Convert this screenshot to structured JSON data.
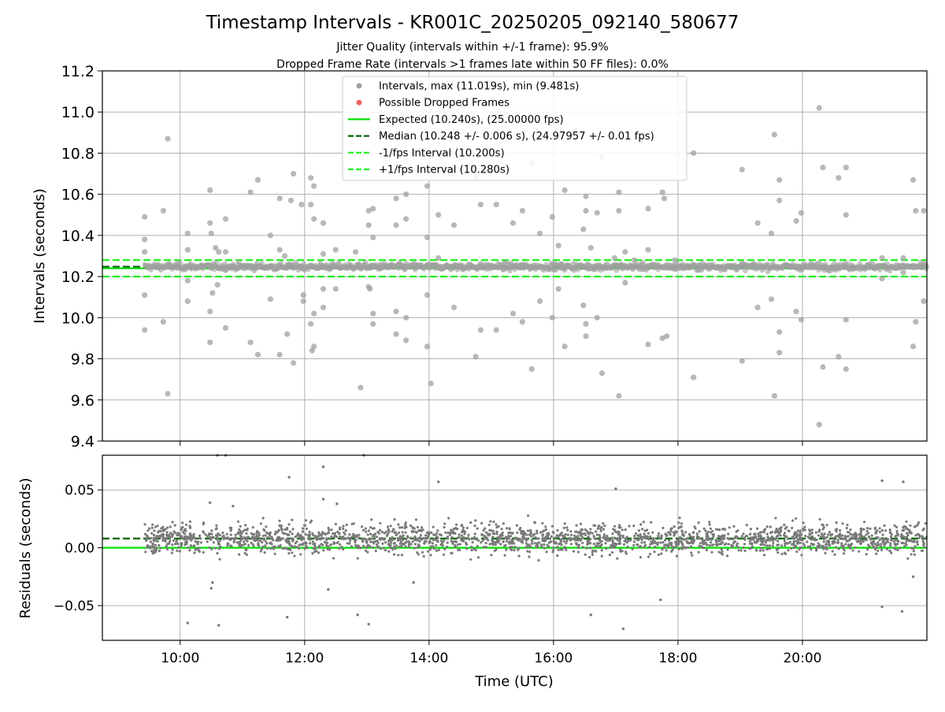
{
  "chart_data": {
    "title": "Timestamp Intervals - KR001C_20250205_092140_580677",
    "subtitle_lines": [
      "Jitter Quality (intervals within +/-1 frame): 95.9%",
      "Dropped Frame Rate (intervals >1 frames late within 50 FF files): 0.0%"
    ],
    "panels": [
      {
        "id": "intervals",
        "type": "scatter",
        "ylabel": "Intervals (seconds)",
        "ylim": [
          9.4,
          11.2
        ],
        "yticks": [
          9.4,
          9.6,
          9.8,
          10.0,
          10.2,
          10.4,
          10.6,
          10.8,
          11.0,
          11.2
        ],
        "ytick_labels": [
          "9.4",
          "9.6",
          "9.8",
          "10.0",
          "10.2",
          "10.4",
          "10.6",
          "10.8",
          "11.0",
          "11.2"
        ],
        "grid": true,
        "legend_position": "top-center",
        "legend": [
          {
            "label": "Intervals, max (11.019s), min (9.481s)",
            "kind": "dot",
            "color": "#a0a0a0"
          },
          {
            "label": "Possible Dropped Frames",
            "kind": "dot",
            "color": "#f06060"
          },
          {
            "label": "Expected (10.240s), (25.00000 fps)",
            "kind": "solid",
            "color": "#00e000"
          },
          {
            "label": "Median (10.248 +/- 0.006 s), (24.97957 +/- 0.01 fps)",
            "kind": "dashed",
            "color": "#006400"
          },
          {
            "label": "-1/fps Interval (10.200s)",
            "kind": "dashed",
            "color": "#22ee22"
          },
          {
            "label": "+1/fps Interval (10.280s)",
            "kind": "dashed",
            "color": "#22ee22"
          }
        ],
        "reference_lines": [
          {
            "value": 10.24,
            "style": "solid",
            "color": "#00e000"
          },
          {
            "value": 10.248,
            "style": "dashed",
            "color": "#006400"
          },
          {
            "value": 10.2,
            "style": "dashed",
            "color": "#22ee22"
          },
          {
            "value": 10.28,
            "style": "dashed",
            "color": "#22ee22"
          }
        ],
        "outliers": [
          [
            9.43,
            10.49
          ],
          [
            9.43,
            10.38
          ],
          [
            9.43,
            10.32
          ],
          [
            9.43,
            10.11
          ],
          [
            9.43,
            9.94
          ],
          [
            9.73,
            10.52
          ],
          [
            9.73,
            9.98
          ],
          [
            9.8,
            10.87
          ],
          [
            9.8,
            9.63
          ],
          [
            10.12,
            10.41
          ],
          [
            10.12,
            10.33
          ],
          [
            10.12,
            10.18
          ],
          [
            10.12,
            10.08
          ],
          [
            10.48,
            10.62
          ],
          [
            10.48,
            10.46
          ],
          [
            10.5,
            10.41
          ],
          [
            10.48,
            10.03
          ],
          [
            10.48,
            9.88
          ],
          [
            10.52,
            10.12
          ],
          [
            10.57,
            10.34
          ],
          [
            10.6,
            10.16
          ],
          [
            10.62,
            10.32
          ],
          [
            10.73,
            10.48
          ],
          [
            10.73,
            10.32
          ],
          [
            10.73,
            9.95
          ],
          [
            11.13,
            10.61
          ],
          [
            11.13,
            9.88
          ],
          [
            11.25,
            10.67
          ],
          [
            11.25,
            9.82
          ],
          [
            11.45,
            10.4
          ],
          [
            11.45,
            10.09
          ],
          [
            11.6,
            10.58
          ],
          [
            11.6,
            10.33
          ],
          [
            11.6,
            9.82
          ],
          [
            11.68,
            10.3
          ],
          [
            11.72,
            9.92
          ],
          [
            11.78,
            10.57
          ],
          [
            11.82,
            10.7
          ],
          [
            11.82,
            9.78
          ],
          [
            11.95,
            10.55
          ],
          [
            11.98,
            10.11
          ],
          [
            11.98,
            10.08
          ],
          [
            12.1,
            10.68
          ],
          [
            12.1,
            10.55
          ],
          [
            12.1,
            9.97
          ],
          [
            12.12,
            9.84
          ],
          [
            12.15,
            10.64
          ],
          [
            12.15,
            10.48
          ],
          [
            12.15,
            10.02
          ],
          [
            12.15,
            9.86
          ],
          [
            12.3,
            10.46
          ],
          [
            12.3,
            10.31
          ],
          [
            12.3,
            10.14
          ],
          [
            12.3,
            10.05
          ],
          [
            12.5,
            10.33
          ],
          [
            12.5,
            10.14
          ],
          [
            12.82,
            10.32
          ],
          [
            12.9,
            9.66
          ],
          [
            13.03,
            10.45
          ],
          [
            13.03,
            10.52
          ],
          [
            13.03,
            10.15
          ],
          [
            13.05,
            10.14
          ],
          [
            13.1,
            10.53
          ],
          [
            13.1,
            10.39
          ],
          [
            13.1,
            10.02
          ],
          [
            13.1,
            9.97
          ],
          [
            13.47,
            10.58
          ],
          [
            13.47,
            10.45
          ],
          [
            13.47,
            10.03
          ],
          [
            13.47,
            9.92
          ],
          [
            13.63,
            10.6
          ],
          [
            13.63,
            10.48
          ],
          [
            13.63,
            10.0
          ],
          [
            13.63,
            9.89
          ],
          [
            13.97,
            10.64
          ],
          [
            13.97,
            10.39
          ],
          [
            13.97,
            10.11
          ],
          [
            13.97,
            9.86
          ],
          [
            14.03,
            9.68
          ],
          [
            14.15,
            10.5
          ],
          [
            14.15,
            10.29
          ],
          [
            14.4,
            10.45
          ],
          [
            14.4,
            10.05
          ],
          [
            14.75,
            10.68
          ],
          [
            14.75,
            9.81
          ],
          [
            14.83,
            10.55
          ],
          [
            14.83,
            9.94
          ],
          [
            15.08,
            10.55
          ],
          [
            15.08,
            9.94
          ],
          [
            15.35,
            10.46
          ],
          [
            15.35,
            10.02
          ],
          [
            15.5,
            10.52
          ],
          [
            15.5,
            9.98
          ],
          [
            15.65,
            10.75
          ],
          [
            15.65,
            9.75
          ],
          [
            15.78,
            10.41
          ],
          [
            15.78,
            10.08
          ],
          [
            15.98,
            10.49
          ],
          [
            15.98,
            10.0
          ],
          [
            16.08,
            10.35
          ],
          [
            16.08,
            10.14
          ],
          [
            16.18,
            10.62
          ],
          [
            16.18,
            9.86
          ],
          [
            16.48,
            10.43
          ],
          [
            16.48,
            10.06
          ],
          [
            16.52,
            10.59
          ],
          [
            16.52,
            10.52
          ],
          [
            16.52,
            9.97
          ],
          [
            16.52,
            9.91
          ],
          [
            16.6,
            10.34
          ],
          [
            16.7,
            10.51
          ],
          [
            16.7,
            10.0
          ],
          [
            16.78,
            10.78
          ],
          [
            16.78,
            9.73
          ],
          [
            16.98,
            10.29
          ],
          [
            17.05,
            10.61
          ],
          [
            17.05,
            10.52
          ],
          [
            17.05,
            9.62
          ],
          [
            17.15,
            10.32
          ],
          [
            17.15,
            10.17
          ],
          [
            17.3,
            10.28
          ],
          [
            17.52,
            10.53
          ],
          [
            17.52,
            10.33
          ],
          [
            17.52,
            9.87
          ],
          [
            17.75,
            10.61
          ],
          [
            17.78,
            10.58
          ],
          [
            17.75,
            9.9
          ],
          [
            17.82,
            9.91
          ],
          [
            17.95,
            10.28
          ],
          [
            18.25,
            10.8
          ],
          [
            18.25,
            9.71
          ],
          [
            19.03,
            10.72
          ],
          [
            19.03,
            9.79
          ],
          [
            19.28,
            10.46
          ],
          [
            19.28,
            10.05
          ],
          [
            19.5,
            10.41
          ],
          [
            19.5,
            10.09
          ],
          [
            19.55,
            10.89
          ],
          [
            19.55,
            9.62
          ],
          [
            19.63,
            10.67
          ],
          [
            19.63,
            10.57
          ],
          [
            19.63,
            9.93
          ],
          [
            19.63,
            9.83
          ],
          [
            19.9,
            10.47
          ],
          [
            19.9,
            10.03
          ],
          [
            19.98,
            10.51
          ],
          [
            19.98,
            9.99
          ],
          [
            20.27,
            11.02
          ],
          [
            20.27,
            9.48
          ],
          [
            20.33,
            10.73
          ],
          [
            20.33,
            9.76
          ],
          [
            20.58,
            10.68
          ],
          [
            20.58,
            9.81
          ],
          [
            20.7,
            10.73
          ],
          [
            20.7,
            10.5
          ],
          [
            20.7,
            9.99
          ],
          [
            20.7,
            9.75
          ],
          [
            21.28,
            10.29
          ],
          [
            21.28,
            10.19
          ],
          [
            21.62,
            10.29
          ],
          [
            21.62,
            10.22
          ],
          [
            21.78,
            10.67
          ],
          [
            21.78,
            9.86
          ],
          [
            21.82,
            10.52
          ],
          [
            21.82,
            9.98
          ],
          [
            21.95,
            10.52
          ],
          [
            21.95,
            10.08
          ]
        ]
      },
      {
        "id": "residuals",
        "type": "scatter",
        "ylabel": "Residuals (seconds)",
        "ylim": [
          -0.08,
          0.08
        ],
        "yticks": [
          -0.05,
          0.0,
          0.05
        ],
        "ytick_labels": [
          "−0.05",
          "0.00",
          "0.05"
        ],
        "grid": true,
        "reference_lines": [
          {
            "value": 0.0,
            "style": "solid",
            "color": "#00e000"
          },
          {
            "value": 0.008,
            "style": "dashed",
            "color": "#006400"
          }
        ],
        "outliers": [
          [
            10.12,
            -0.065
          ],
          [
            10.48,
            0.039
          ],
          [
            10.5,
            -0.035
          ],
          [
            10.52,
            -0.03
          ],
          [
            10.62,
            -0.067
          ],
          [
            10.6,
            0.08
          ],
          [
            10.73,
            0.08
          ],
          [
            10.85,
            0.036
          ],
          [
            11.75,
            0.061
          ],
          [
            11.72,
            -0.06
          ],
          [
            12.3,
            0.07
          ],
          [
            12.3,
            0.042
          ],
          [
            12.52,
            0.038
          ],
          [
            12.38,
            -0.036
          ],
          [
            12.85,
            -0.058
          ],
          [
            12.95,
            0.08
          ],
          [
            13.03,
            -0.066
          ],
          [
            13.75,
            -0.03
          ],
          [
            14.15,
            0.057
          ],
          [
            16.6,
            -0.058
          ],
          [
            17.0,
            0.051
          ],
          [
            17.12,
            -0.07
          ],
          [
            17.72,
            -0.045
          ],
          [
            21.28,
            0.058
          ],
          [
            21.28,
            -0.051
          ],
          [
            21.6,
            -0.055
          ],
          [
            21.62,
            0.057
          ],
          [
            21.78,
            -0.025
          ]
        ]
      }
    ],
    "x": {
      "label": "Time (UTC)",
      "range_hours": [
        8.75,
        22.0
      ],
      "data_range_hours": [
        9.43,
        22.0
      ],
      "ticks_hours": [
        10,
        12,
        14,
        16,
        18,
        20
      ],
      "tick_labels": [
        "10:00",
        "12:00",
        "14:00",
        "16:00",
        "18:00",
        "20:00"
      ]
    },
    "colors": {
      "points_top": "#a0a0a0",
      "points_bottom": "#7a7a7a",
      "expected": "#00e000",
      "median": "#006400",
      "fps_bounds": "#22ee22"
    }
  }
}
